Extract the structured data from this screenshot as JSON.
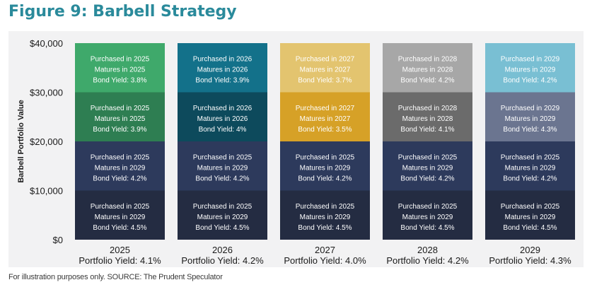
{
  "chart_data": {
    "type": "bar",
    "stacked": true,
    "title": "Figure 9: Barbell Strategy",
    "ylabel": "Barbell Portfolio Value",
    "xlabel": "",
    "ylim": [
      0,
      40000
    ],
    "yticks": [
      "$0",
      "$10,000",
      "$20,000",
      "$30,000",
      "$40,000"
    ],
    "ytick_values": [
      0,
      10000,
      20000,
      30000,
      40000
    ],
    "categories": [
      "2025",
      "2026",
      "2027",
      "2028",
      "2029"
    ],
    "portfolio_yields": [
      "Portfolio Yield: 4.1%",
      "Portfolio Yield: 4.2%",
      "Portfolio Yield: 4.0%",
      "Portfolio Yield: 4.2%",
      "Portfolio Yield: 4.3%"
    ],
    "bars": [
      {
        "segments": [
          {
            "value": 10000,
            "color": "#242c42",
            "lines": [
              "Purchased in 2025",
              "Matures in 2029",
              "Bond Yield: 4.5%"
            ]
          },
          {
            "value": 10000,
            "color": "#2d3a5c",
            "lines": [
              "Purchased in 2025",
              "Matures in 2029",
              "Bond Yield: 4.2%"
            ]
          },
          {
            "value": 10000,
            "color": "#2e7e52",
            "lines": [
              "Purchased in 2025",
              "Matures in 2025",
              "Bond Yield: 3.9%"
            ]
          },
          {
            "value": 10000,
            "color": "#3fa96b",
            "lines": [
              "Purchased in 2025",
              "Matures in 2025",
              "Bond Yield: 3.8%"
            ]
          }
        ]
      },
      {
        "segments": [
          {
            "value": 10000,
            "color": "#242c42",
            "lines": [
              "Purchased in 2025",
              "Matures in 2029",
              "Bond Yield: 4.5%"
            ]
          },
          {
            "value": 10000,
            "color": "#2d3a5c",
            "lines": [
              "Purchased in 2025",
              "Matures in 2029",
              "Bond Yield: 4.2%"
            ]
          },
          {
            "value": 10000,
            "color": "#0d4a5c",
            "lines": [
              "Purchased in 2026",
              "Matures in 2026",
              "Bond Yield: 4%"
            ]
          },
          {
            "value": 10000,
            "color": "#13718a",
            "lines": [
              "Purchased in 2026",
              "Matures in 2026",
              "Bond Yield: 3.9%"
            ]
          }
        ]
      },
      {
        "segments": [
          {
            "value": 10000,
            "color": "#242c42",
            "lines": [
              "Purchased in 2025",
              "Matures in 2029",
              "Bond Yield: 4.5%"
            ]
          },
          {
            "value": 10000,
            "color": "#2d3a5c",
            "lines": [
              "Purchased in 2025",
              "Matures in 2029",
              "Bond Yield: 4.2%"
            ]
          },
          {
            "value": 10000,
            "color": "#d6a127",
            "lines": [
              "Purchased in 2027",
              "Matures in 2027",
              "Bond Yield: 3.5%"
            ]
          },
          {
            "value": 10000,
            "color": "#e3c46f",
            "lines": [
              "Purchased in 2027",
              "Matures in 2027",
              "Bond Yield: 3.7%"
            ]
          }
        ]
      },
      {
        "segments": [
          {
            "value": 10000,
            "color": "#242c42",
            "lines": [
              "Purchased in 2025",
              "Matures in 2029",
              "Bond Yield: 4.5%"
            ]
          },
          {
            "value": 10000,
            "color": "#2d3a5c",
            "lines": [
              "Purchased in 2025",
              "Matures in 2029",
              "Bond Yield: 4.2%"
            ]
          },
          {
            "value": 10000,
            "color": "#6b6b6b",
            "lines": [
              "Purchased in 2028",
              "Matures in 2028",
              "Bond Yield: 4.1%"
            ]
          },
          {
            "value": 10000,
            "color": "#a7a7a7",
            "lines": [
              "Purchased in 2028",
              "Matures in 2028",
              "Bond Yield: 4.2%"
            ]
          }
        ]
      },
      {
        "segments": [
          {
            "value": 10000,
            "color": "#242c42",
            "lines": [
              "Purchased in 2025",
              "Matures in 2029",
              "Bond Yield: 4.5%"
            ]
          },
          {
            "value": 10000,
            "color": "#2d3a5c",
            "lines": [
              "Purchased in 2025",
              "Matures in 2029",
              "Bond Yield: 4.2%"
            ]
          },
          {
            "value": 10000,
            "color": "#6b7590",
            "lines": [
              "Purchased in 2029",
              "Matures in 2029",
              "Bond Yield: 4.3%"
            ]
          },
          {
            "value": 10000,
            "color": "#79bfd3",
            "lines": [
              "Purchased in 2029",
              "Matures in 2029",
              "Bond Yield: 4.2%"
            ]
          }
        ]
      }
    ],
    "source": "For illustration purposes only. SOURCE: The Prudent Speculator"
  }
}
